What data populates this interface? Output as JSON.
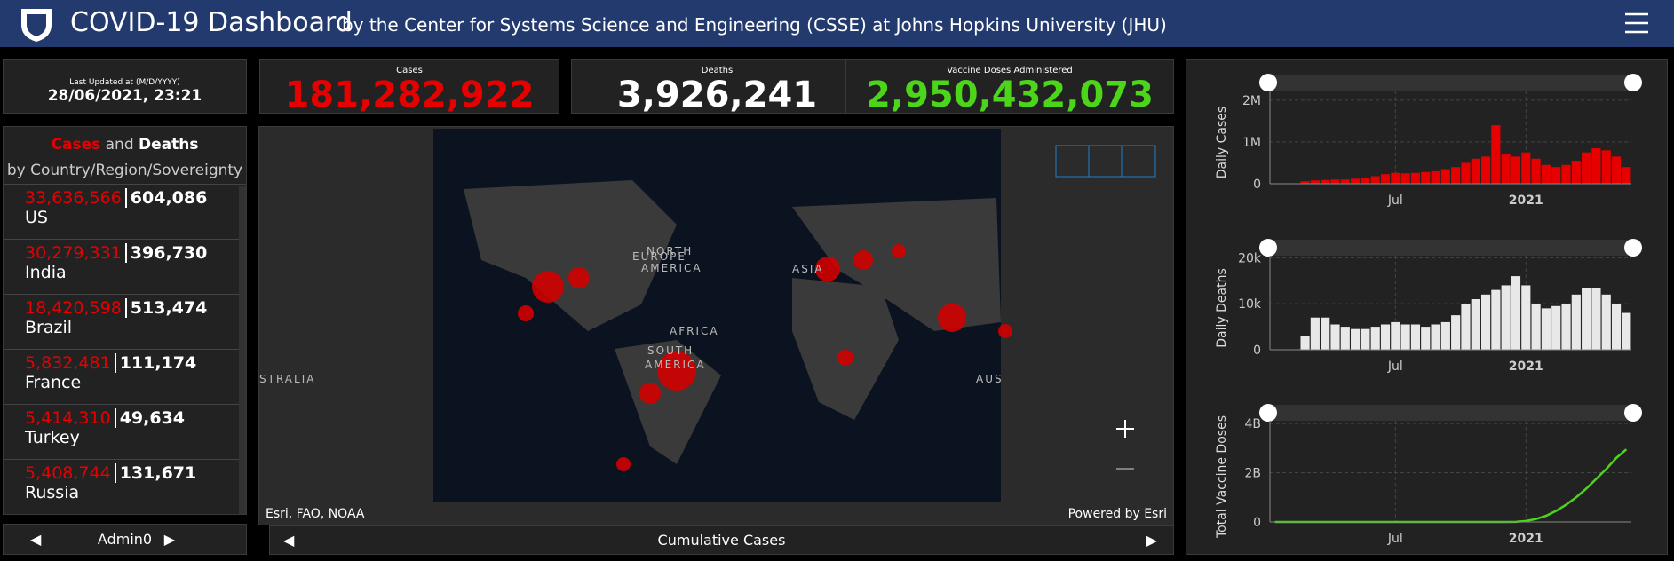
{
  "header": {
    "title": "COVID-19 Dashboard",
    "subtitle": "by the Center for Systems Science and Engineering (CSSE) at Johns Hopkins University (JHU)"
  },
  "stats": {
    "updated_label": "Last Updated at (M/D/YYYY)",
    "updated": "28/06/2021, 23:21",
    "cases_label": "Cases",
    "cases": "181,282,922",
    "deaths_label": "Deaths",
    "deaths": "3,926,241",
    "vaccine_label": "Vaccine Doses Administered",
    "vaccine": "2,950,432,073"
  },
  "list": {
    "heading": {
      "cases": "Cases",
      "and": "and",
      "deaths": "Deaths",
      "rest": "by Country/Region/Sovereignty"
    },
    "rows": [
      [
        "33,636,566",
        "604,086",
        "US"
      ],
      [
        "30,279,331",
        "396,730",
        "India"
      ],
      [
        "18,420,598",
        "513,474",
        "Brazil"
      ],
      [
        "5,832,481",
        "111,174",
        "France"
      ],
      [
        "5,414,310",
        "49,634",
        "Turkey"
      ],
      [
        "5,408,744",
        "131,671",
        "Russia"
      ]
    ],
    "nav": "Admin0"
  },
  "map": {
    "labels": [
      "NORTH",
      "AMERICA",
      "EUROPE",
      "ASIA",
      "AFRICA",
      "SOUTH",
      "AMERICA",
      "STRALIA",
      "AUS"
    ],
    "attribution": "Esri, FAO, NOAA",
    "powered": "Powered by Esri",
    "nav": "Cumulative Cases"
  },
  "chart_data": [
    {
      "type": "bar",
      "ylabel": "Daily Cases",
      "color": "#e60000",
      "grid": true,
      "categories": [
        null,
        null,
        null,
        null,
        null,
        null,
        null,
        null,
        null,
        null,
        null,
        null,
        "Jul",
        null,
        null,
        null,
        null,
        null,
        null,
        null,
        null,
        null,
        null,
        null,
        null,
        "2021",
        null,
        null,
        null,
        null,
        null,
        null,
        null,
        null,
        null,
        null
      ],
      "values": [
        0,
        2000,
        5000,
        60000,
        80000,
        90000,
        100000,
        100000,
        120000,
        150000,
        180000,
        230000,
        260000,
        250000,
        260000,
        280000,
        300000,
        350000,
        400000,
        500000,
        600000,
        650000,
        1400000,
        700000,
        650000,
        750000,
        600000,
        450000,
        400000,
        450000,
        550000,
        750000,
        850000,
        800000,
        650000,
        400000
      ],
      "ylim": [
        0,
        2400000
      ],
      "yticks": [
        0,
        {
          "value": 1000000,
          "label": "1M"
        },
        {
          "value": 2000000,
          "label": "2M"
        }
      ]
    },
    {
      "type": "bar",
      "ylabel": "Daily Deaths",
      "color": "#e8e8e8",
      "grid": true,
      "categories": [
        null,
        null,
        null,
        null,
        null,
        null,
        null,
        null,
        null,
        null,
        null,
        null,
        "Jul",
        null,
        null,
        null,
        null,
        null,
        null,
        null,
        null,
        null,
        null,
        null,
        null,
        "2021",
        null,
        null,
        null,
        null,
        null,
        null,
        null,
        null,
        null,
        null
      ],
      "values": [
        0,
        0,
        50,
        3000,
        7000,
        7000,
        5500,
        5000,
        4500,
        4500,
        5000,
        5500,
        6000,
        5500,
        5500,
        5000,
        5500,
        6000,
        7500,
        10000,
        11000,
        12000,
        13000,
        14000,
        16000,
        14000,
        10000,
        9000,
        9500,
        10000,
        12000,
        13500,
        13500,
        12000,
        10000,
        8000
      ],
      "ylim": [
        0,
        22000
      ],
      "yticks": [
        0,
        {
          "value": 10000,
          "label": "10k"
        },
        {
          "value": 20000,
          "label": "20k"
        }
      ]
    },
    {
      "type": "line",
      "ylabel": "Total Vaccine Doses",
      "color": "#4cd61a",
      "grid": true,
      "categories": [
        null,
        null,
        null,
        null,
        null,
        null,
        null,
        null,
        null,
        null,
        null,
        null,
        "Jul",
        null,
        null,
        null,
        null,
        null,
        null,
        null,
        null,
        null,
        null,
        null,
        null,
        "2021",
        null,
        null,
        null,
        null,
        null,
        null,
        null,
        null,
        null,
        null
      ],
      "values": [
        0,
        0,
        0,
        0,
        0,
        0,
        0,
        0,
        0,
        0,
        0,
        0,
        0,
        0,
        0,
        0,
        0,
        0,
        0,
        0,
        0,
        0,
        0,
        0,
        5000000,
        40000000,
        120000000,
        250000000,
        450000000,
        700000000,
        1000000000,
        1350000000,
        1750000000,
        2150000000,
        2600000000,
        2950000000
      ],
      "ylim": [
        0,
        4400000000
      ],
      "yticks": [
        0,
        {
          "value": 2000000000,
          "label": "2B"
        },
        {
          "value": 4000000000,
          "label": "4B"
        }
      ]
    }
  ]
}
